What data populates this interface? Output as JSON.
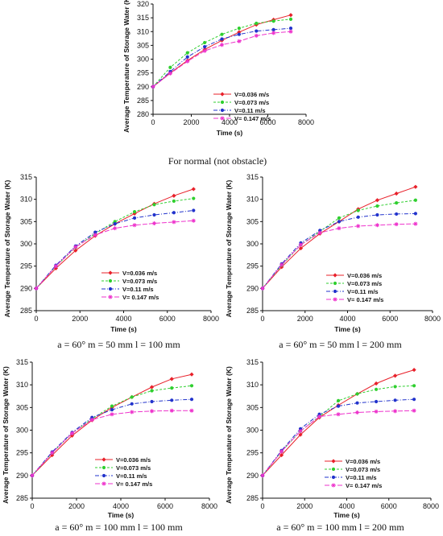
{
  "legend_names": [
    "V=0.036 m/s",
    "V=0.073 m/s",
    "V=0.11 m/s",
    "V= 0.147 m/s"
  ],
  "series_styles": [
    {
      "color": "#e8202a",
      "dash": "",
      "marker": "diamond"
    },
    {
      "color": "#2fcf2f",
      "dash": "3,2",
      "marker": "circle"
    },
    {
      "color": "#2233cc",
      "dash": "5,2,1,2",
      "marker": "circle"
    },
    {
      "color": "#ee33cc",
      "dash": "6,2",
      "marker": "star"
    }
  ],
  "chart_data": [
    {
      "id": "normal",
      "type": "line",
      "caption": "For normal (not obstacle)",
      "xlabel": "Time (s)",
      "ylabel": "Average Temperature of Storage Water (K)",
      "xlim": [
        0,
        8000
      ],
      "ylim": [
        280,
        320
      ],
      "xticks": [
        0,
        2000,
        4000,
        6000,
        8000
      ],
      "yticks": [
        280,
        285,
        290,
        295,
        300,
        305,
        310,
        315,
        320
      ],
      "x": [
        0,
        900,
        1800,
        2700,
        3600,
        4500,
        5400,
        6300,
        7200
      ],
      "series": [
        {
          "name": "V=0.036 m/s",
          "values": [
            290,
            295.0,
            299.5,
            303.5,
            306.8,
            309.8,
            312.5,
            314.3,
            316.0
          ]
        },
        {
          "name": "V=0.073 m/s",
          "values": [
            290,
            297.0,
            302.3,
            306.0,
            309.0,
            311.2,
            313.0,
            313.8,
            314.5
          ]
        },
        {
          "name": "V=0.11 m/s",
          "values": [
            290,
            295.5,
            300.8,
            304.5,
            307.3,
            309.0,
            310.2,
            310.7,
            311.2
          ]
        },
        {
          "name": "V= 0.147 m/s",
          "values": [
            290,
            294.8,
            299.2,
            303.0,
            305.2,
            306.5,
            308.5,
            309.5,
            310.0
          ]
        }
      ]
    },
    {
      "id": "a60-m50-l100",
      "type": "line",
      "caption": "a = 60° m = 50 mm l = 100 mm",
      "xlabel": "Time (s)",
      "ylabel": "Average Temperature of Storage Water (K)",
      "xlim": [
        0,
        8000
      ],
      "ylim": [
        285,
        315
      ],
      "xticks": [
        0,
        2000,
        4000,
        6000,
        8000
      ],
      "yticks": [
        285,
        290,
        295,
        300,
        305,
        310,
        315
      ],
      "x": [
        0,
        900,
        1800,
        2700,
        3600,
        4500,
        5400,
        6300,
        7200
      ],
      "series": [
        {
          "name": "V=0.036 m/s",
          "values": [
            290,
            294.5,
            298.5,
            301.8,
            304.5,
            306.8,
            309.0,
            310.8,
            312.3
          ]
        },
        {
          "name": "V=0.073 m/s",
          "values": [
            290,
            295.0,
            299.2,
            302.3,
            305.0,
            307.2,
            308.8,
            309.6,
            310.2
          ]
        },
        {
          "name": "V=0.11 m/s",
          "values": [
            290,
            295.2,
            299.5,
            302.6,
            304.5,
            305.8,
            306.5,
            307.0,
            307.5
          ]
        },
        {
          "name": "V= 0.147 m/s",
          "values": [
            290,
            295.0,
            299.3,
            302.0,
            303.5,
            304.2,
            304.6,
            304.9,
            305.2
          ]
        }
      ]
    },
    {
      "id": "a60-m50-l200",
      "type": "line",
      "caption": "a = 60° m = 50 mm l = 200 mm",
      "xlabel": "Time (s)",
      "ylabel": "Average Temperature of Storage Water (K)",
      "xlim": [
        0,
        8000
      ],
      "ylim": [
        285,
        315
      ],
      "xticks": [
        0,
        2000,
        4000,
        6000,
        8000
      ],
      "yticks": [
        285,
        290,
        295,
        300,
        305,
        310,
        315
      ],
      "x": [
        0,
        900,
        1800,
        2700,
        3600,
        4500,
        5400,
        6300,
        7200
      ],
      "series": [
        {
          "name": "V=0.036 m/s",
          "values": [
            290,
            294.8,
            299.0,
            302.3,
            305.0,
            307.8,
            309.8,
            311.3,
            312.8
          ]
        },
        {
          "name": "V=0.073 m/s",
          "values": [
            290,
            295.2,
            299.8,
            302.8,
            305.8,
            307.5,
            308.5,
            309.2,
            309.8
          ]
        },
        {
          "name": "V=0.11 m/s",
          "values": [
            290,
            295.5,
            300.2,
            303.0,
            305.0,
            306.0,
            306.5,
            306.7,
            306.8
          ]
        },
        {
          "name": "V= 0.147 m/s",
          "values": [
            290,
            295.3,
            299.8,
            302.5,
            303.5,
            304.0,
            304.2,
            304.4,
            304.5
          ]
        }
      ]
    },
    {
      "id": "a60-m100-l100",
      "type": "line",
      "caption": "a = 60° m = 100 mm l = 100 mm",
      "xlabel": "Time (s)",
      "ylabel": "Average Temperature of Storage Water (K)",
      "xlim": [
        0,
        8000
      ],
      "ylim": [
        285,
        315
      ],
      "xticks": [
        0,
        2000,
        4000,
        6000,
        8000
      ],
      "yticks": [
        285,
        290,
        295,
        300,
        305,
        310,
        315
      ],
      "x": [
        0,
        900,
        1800,
        2700,
        3600,
        4500,
        5400,
        6300,
        7200
      ],
      "series": [
        {
          "name": "V=0.036 m/s",
          "values": [
            290,
            294.5,
            298.8,
            302.2,
            305.0,
            307.3,
            309.5,
            311.3,
            312.3
          ]
        },
        {
          "name": "V=0.073 m/s",
          "values": [
            290,
            295.0,
            299.3,
            302.5,
            305.3,
            307.3,
            308.7,
            309.3,
            309.8
          ]
        },
        {
          "name": "V=0.11 m/s",
          "values": [
            290,
            295.2,
            299.5,
            302.8,
            304.5,
            305.8,
            306.3,
            306.6,
            306.8
          ]
        },
        {
          "name": "V= 0.147 m/s",
          "values": [
            290,
            295.0,
            299.3,
            302.3,
            303.5,
            304.0,
            304.2,
            304.3,
            304.3
          ]
        }
      ]
    },
    {
      "id": "a60-m100-l200",
      "type": "line",
      "caption": "a = 60° m = 100 mm l = 200 mm",
      "xlabel": "Time (s)",
      "ylabel": "Average Temperature of Storage Water (K)",
      "xlim": [
        0,
        8000
      ],
      "ylim": [
        285,
        315
      ],
      "xticks": [
        0,
        2000,
        4000,
        6000,
        8000
      ],
      "yticks": [
        285,
        290,
        295,
        300,
        305,
        310,
        315
      ],
      "x": [
        0,
        900,
        1800,
        2700,
        3600,
        4500,
        5400,
        6300,
        7200
      ],
      "series": [
        {
          "name": "V=0.036 m/s",
          "values": [
            290,
            294.5,
            299.0,
            302.8,
            305.5,
            308.0,
            310.3,
            312.0,
            313.3
          ]
        },
        {
          "name": "V=0.073 m/s",
          "values": [
            290,
            295.3,
            299.8,
            303.0,
            306.5,
            308.0,
            309.0,
            309.6,
            309.8
          ]
        },
        {
          "name": "V=0.11 m/s",
          "values": [
            290,
            295.5,
            300.3,
            303.5,
            305.3,
            306.0,
            306.3,
            306.6,
            306.8
          ]
        },
        {
          "name": "V= 0.147 m/s",
          "values": [
            290,
            295.3,
            299.8,
            303.0,
            303.5,
            303.9,
            304.1,
            304.2,
            304.3
          ]
        }
      ]
    }
  ]
}
